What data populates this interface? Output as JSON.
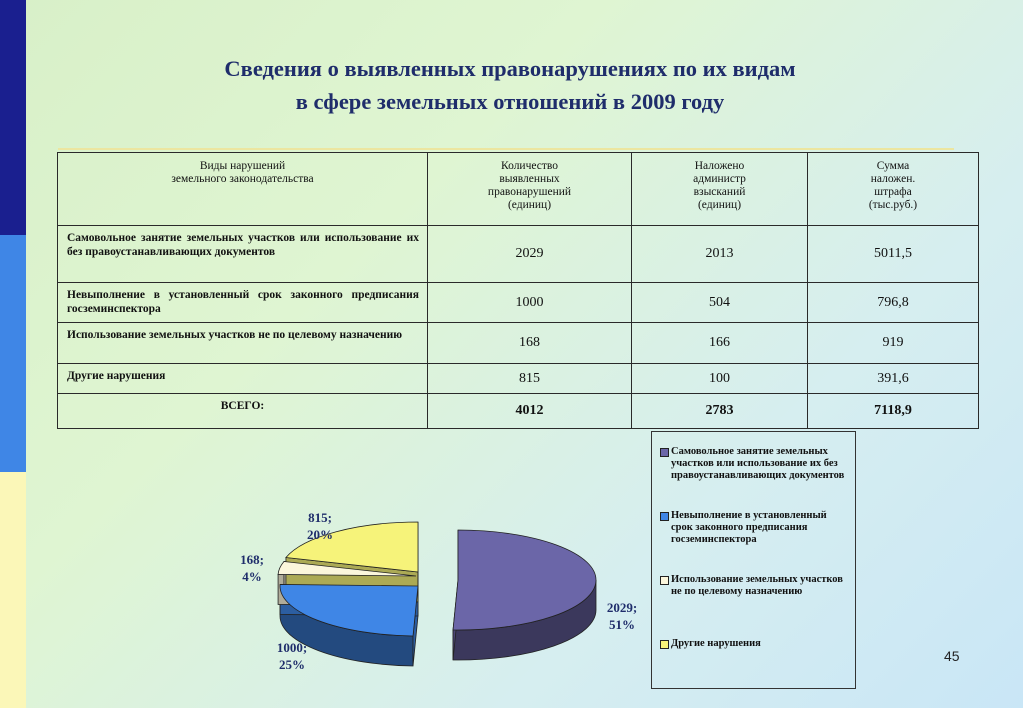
{
  "title": {
    "line1": "Сведения о выявленных правонарушениях по их видам",
    "line2": "в сфере земельных отношений в 2009 году"
  },
  "table": {
    "headers": [
      [
        "Виды нарушений",
        "земельного законодательства"
      ],
      [
        "Количество",
        "выявленных",
        "правонарушений",
        "(единиц)"
      ],
      [
        "Наложено",
        "администр",
        "взысканий",
        "(единиц)"
      ],
      [
        "Сумма",
        "наложен.",
        "штрафа",
        "(тыс.руб.)"
      ]
    ],
    "rows": [
      {
        "label": "Самовольное занятие земельных участков или использование их без правоустанавливающих документов",
        "count": "2029",
        "penalties": "2013",
        "sum": "5011,5"
      },
      {
        "label": "Невыполнение в установленный срок законного предписания госземинспектора",
        "count": "1000",
        "penalties": "504",
        "sum": "796,8"
      },
      {
        "label": "Использование земельных участков не по целевому назначению",
        "count": "168",
        "penalties": "166",
        "sum": "919"
      },
      {
        "label": "Другие нарушения",
        "count": "815",
        "penalties": "100",
        "sum": "391,6"
      }
    ],
    "total": {
      "label": "ВСЕГО:",
      "count": "4012",
      "penalties": "2783",
      "sum": "7118,9"
    }
  },
  "chart_data": {
    "type": "pie",
    "title": "",
    "slices": [
      {
        "name": "Самовольное занятие земельных участков или использование их без правоустанавливающих документов",
        "value": 2029,
        "percent": 51,
        "label": "2029;",
        "pct_label": "51%",
        "color": "#6b66a8"
      },
      {
        "name": "Невыполнение в установленный срок законного предписания госземинспектора",
        "value": 1000,
        "percent": 25,
        "label": "1000;",
        "pct_label": "25%",
        "color": "#3f86e6"
      },
      {
        "name": "Использование земельных участков не по целевому назначению",
        "value": 168,
        "percent": 4,
        "label": "168;",
        "pct_label": "4%",
        "color": "#fbf6dc"
      },
      {
        "name": "Другие нарушения",
        "value": 815,
        "percent": 20,
        "label": "815;",
        "pct_label": "20%",
        "color": "#f6f37a"
      }
    ],
    "legend_position": "right"
  },
  "page_number": "45",
  "colors": {
    "title": "#1f2d6b",
    "sidebar_top": "#1a1f8f",
    "sidebar_mid": "#3f86e6",
    "sidebar_bottom": "#fbf7b8"
  }
}
